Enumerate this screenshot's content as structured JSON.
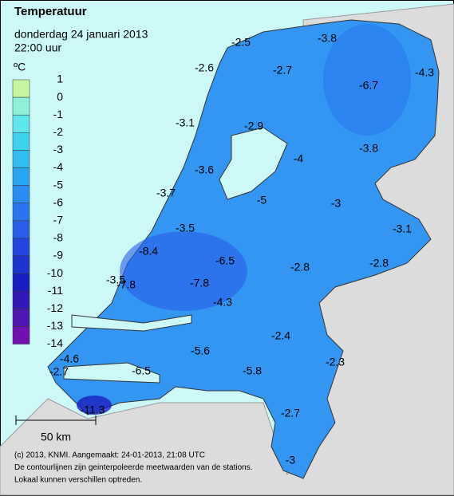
{
  "header": {
    "title": "Temperatuur",
    "date": "donderdag 24 januari 2013",
    "time": "22:00 uur"
  },
  "legend": {
    "unit": "ºC",
    "levels": [
      1,
      0,
      -1,
      -2,
      -3,
      -4,
      -5,
      -6,
      -7,
      -8,
      -9,
      -10,
      -11,
      -12,
      -13,
      -14
    ],
    "colors": [
      "#c8f5a0",
      "#8ef0d8",
      "#5ee6ea",
      "#3fd2ee",
      "#32bef0",
      "#2aa6f0",
      "#2a8ef0",
      "#2a76ee",
      "#2a5ee8",
      "#2446dc",
      "#1e32cc",
      "#1a1ebe",
      "#3218b4",
      "#5014b0",
      "#7010ae"
    ]
  },
  "stations": [
    -2.5,
    -3.8,
    -2.6,
    -2.7,
    -6.7,
    -4.3,
    -3.1,
    -2.9,
    -3.8,
    -4.0,
    -3.6,
    -3.7,
    -5.0,
    -3.0,
    -3.5,
    -3.1,
    -8.4,
    -6.5,
    -2.8,
    -2.8,
    -3.5,
    -7.8,
    -7.8,
    -4.3,
    -2.4,
    -4.6,
    -5.6,
    -2.3,
    -2.7,
    -6.5,
    -5.8,
    -11.3,
    -2.7,
    -3.0
  ],
  "scale": {
    "label": "50 km"
  },
  "footer": [
    "(c) 2013, KNMI. Aangemaakt: 24-01-2013, 21:08 UTC",
    "De contourlijnen zijn geinterpoleerde meetwaarden van de stations.",
    "Lokaal kunnen verschillen optreden."
  ]
}
